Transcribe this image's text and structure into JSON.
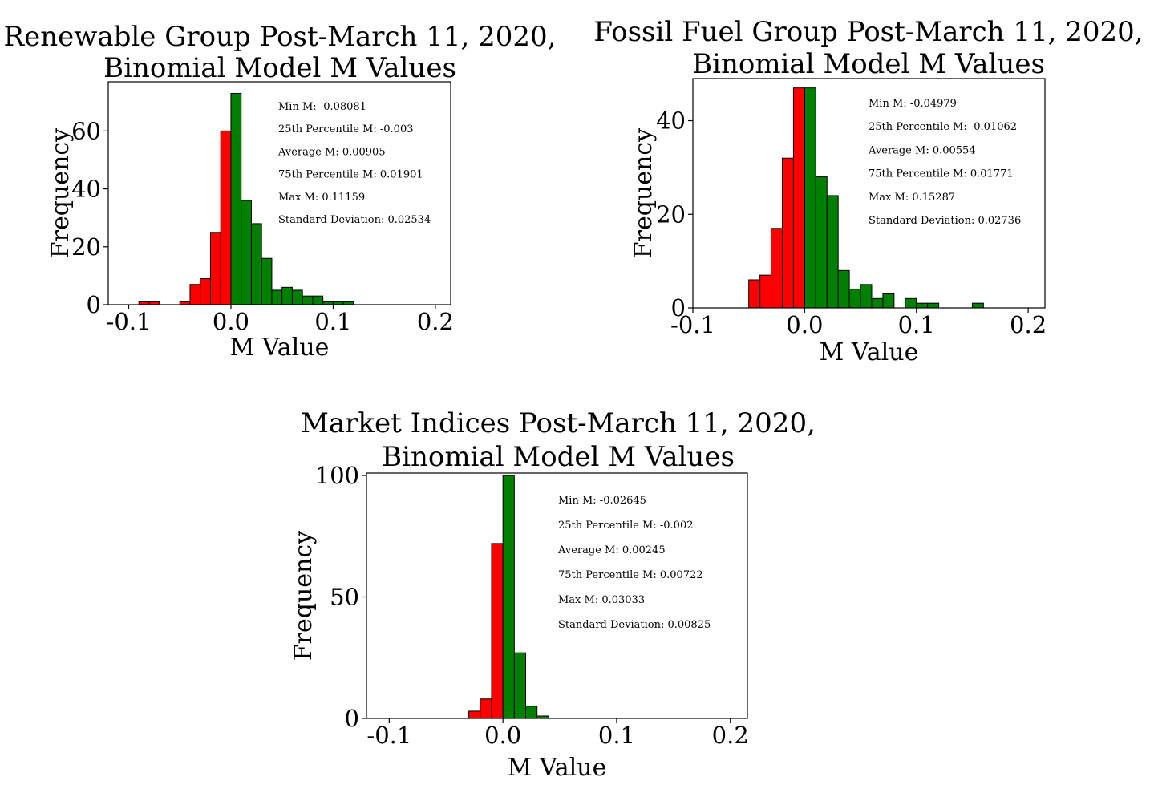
{
  "chart_data": [
    {
      "type": "bar",
      "title_lines": [
        "Renewable Group Post-March 11, 2020,",
        "Binomial Model M Values"
      ],
      "xlabel": "M Value",
      "ylabel": "Frequency",
      "xlim": [
        -0.12,
        0.215
      ],
      "ylim": [
        0,
        77
      ],
      "xticks": [
        -0.1,
        0.0,
        0.1,
        0.2
      ],
      "xtick_labels": [
        "-0.1",
        "0.0",
        "0.1",
        "0.2"
      ],
      "yticks": [
        0,
        20,
        40,
        60
      ],
      "ytick_labels": [
        "0",
        "20",
        "40",
        "60"
      ],
      "grid": false,
      "bin_width": 0.01,
      "bin_starts": [
        -0.09,
        -0.08,
        -0.05,
        -0.04,
        -0.03,
        -0.02,
        -0.01,
        0.0,
        0.01,
        0.02,
        0.03,
        0.04,
        0.05,
        0.06,
        0.07,
        0.08,
        0.09,
        0.1,
        0.11
      ],
      "values": [
        1,
        1,
        1,
        7,
        9,
        25,
        60,
        73,
        36,
        28,
        16,
        5,
        6,
        5,
        3,
        3,
        1,
        1,
        1
      ],
      "colors": [
        "red",
        "red",
        "red",
        "red",
        "red",
        "red",
        "red",
        "green",
        "green",
        "green",
        "green",
        "green",
        "green",
        "green",
        "green",
        "green",
        "green",
        "green",
        "green"
      ],
      "color_map": {
        "red": "#ff0000",
        "green": "#008000"
      },
      "stats": [
        "Min M: -0.08081",
        "25th Percentile M: -0.003",
        "Average M: 0.00905",
        "75th Percentile M: 0.01901",
        "Max M: 0.11159",
        "Standard Deviation: 0.02534"
      ]
    },
    {
      "type": "bar",
      "title_lines": [
        "Fossil Fuel Group Post-March 11, 2020,",
        "Binomial Model M Values"
      ],
      "xlabel": "M Value",
      "ylabel": "Frequency",
      "xlim": [
        -0.1,
        0.215
      ],
      "ylim": [
        0,
        49
      ],
      "xticks": [
        -0.1,
        0.0,
        0.1,
        0.2
      ],
      "xtick_labels": [
        "-0.1",
        "0.0",
        "0.1",
        "0.2"
      ],
      "yticks": [
        0,
        20,
        40
      ],
      "ytick_labels": [
        "0",
        "20",
        "40"
      ],
      "grid": false,
      "bin_width": 0.01,
      "bin_starts": [
        -0.05,
        -0.04,
        -0.03,
        -0.02,
        -0.01,
        0.0,
        0.01,
        0.02,
        0.03,
        0.04,
        0.05,
        0.06,
        0.07,
        0.09,
        0.1,
        0.11,
        0.15
      ],
      "values": [
        6,
        7,
        17,
        32,
        47,
        47,
        28,
        24,
        8,
        4,
        5,
        2,
        3,
        2,
        1,
        1,
        1
      ],
      "colors": [
        "red",
        "red",
        "red",
        "red",
        "red",
        "green",
        "green",
        "green",
        "green",
        "green",
        "green",
        "green",
        "green",
        "green",
        "green",
        "green",
        "green"
      ],
      "color_map": {
        "red": "#ff0000",
        "green": "#008000"
      },
      "stats": [
        "Min M: -0.04979",
        "25th Percentile M: -0.01062",
        "Average M: 0.00554",
        "75th Percentile M: 0.01771",
        "Max M: 0.15287",
        "Standard Deviation: 0.02736"
      ]
    },
    {
      "type": "bar",
      "title_lines": [
        "Market Indices Post-March 11, 2020,",
        "Binomial Model M Values"
      ],
      "xlabel": "M Value",
      "ylabel": "Frequency",
      "xlim": [
        -0.12,
        0.215
      ],
      "ylim": [
        0,
        101
      ],
      "xticks": [
        -0.1,
        0.0,
        0.1,
        0.2
      ],
      "xtick_labels": [
        "-0.1",
        "0.0",
        "0.1",
        "0.2"
      ],
      "yticks": [
        0,
        50,
        100
      ],
      "ytick_labels": [
        "0",
        "50",
        "100"
      ],
      "grid": false,
      "bin_width": 0.01,
      "bin_starts": [
        -0.03,
        -0.02,
        -0.01,
        0.0,
        0.01,
        0.02,
        0.03
      ],
      "values": [
        3,
        8,
        72,
        100,
        27,
        5,
        1
      ],
      "colors": [
        "red",
        "red",
        "red",
        "green",
        "green",
        "green",
        "green"
      ],
      "color_map": {
        "red": "#ff0000",
        "green": "#008000"
      },
      "stats": [
        "Min M: -0.02645",
        "25th Percentile M: -0.002",
        "Average M: 0.00245",
        "75th Percentile M: 0.00722",
        "Max M: 0.03033",
        "Standard Deviation: 0.00825"
      ]
    }
  ]
}
